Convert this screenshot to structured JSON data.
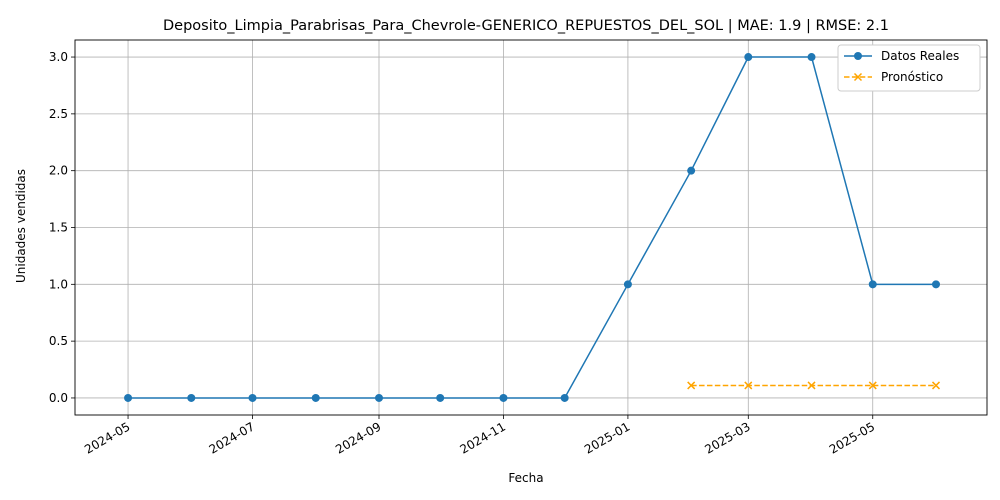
{
  "chart_data": {
    "type": "line",
    "title": "Deposito_Limpia_Parabrisas_Para_Chevrole-GENERICO_REPUESTOS_DEL_SOL | MAE: 1.9 | RMSE: 2.1",
    "xlabel": "Fecha",
    "ylabel": "Unidades vendidas",
    "xlim": [
      "2024-04-05",
      "2025-06-26"
    ],
    "ylim": [
      -0.15,
      3.15
    ],
    "x_ticks": [
      "2024-05",
      "2024-07",
      "2024-09",
      "2024-11",
      "2025-01",
      "2025-03",
      "2025-05"
    ],
    "y_ticks": [
      "0.0",
      "0.5",
      "1.0",
      "1.5",
      "2.0",
      "2.5",
      "3.0"
    ],
    "grid": true,
    "legend_position": "top-right",
    "series": [
      {
        "name": "Datos Reales",
        "color": "#1f77b4",
        "marker": "circle",
        "line_style": "solid",
        "points": [
          {
            "x": "2024-05-01",
            "y": 0
          },
          {
            "x": "2024-06-01",
            "y": 0
          },
          {
            "x": "2024-07-01",
            "y": 0
          },
          {
            "x": "2024-08-01",
            "y": 0
          },
          {
            "x": "2024-09-01",
            "y": 0
          },
          {
            "x": "2024-10-01",
            "y": 0
          },
          {
            "x": "2024-11-01",
            "y": 0
          },
          {
            "x": "2024-12-01",
            "y": 0
          },
          {
            "x": "2025-01-01",
            "y": 1
          },
          {
            "x": "2025-02-01",
            "y": 2
          },
          {
            "x": "2025-03-01",
            "y": 3
          },
          {
            "x": "2025-04-01",
            "y": 3
          },
          {
            "x": "2025-05-01",
            "y": 1
          },
          {
            "x": "2025-06-01",
            "y": 1
          }
        ]
      },
      {
        "name": "Pronóstico",
        "color": "#ffa500",
        "marker": "x",
        "line_style": "dashed",
        "points": [
          {
            "x": "2025-02-01",
            "y": 0.11
          },
          {
            "x": "2025-03-01",
            "y": 0.11
          },
          {
            "x": "2025-04-01",
            "y": 0.11
          },
          {
            "x": "2025-05-01",
            "y": 0.11
          },
          {
            "x": "2025-06-01",
            "y": 0.11
          }
        ]
      }
    ]
  }
}
